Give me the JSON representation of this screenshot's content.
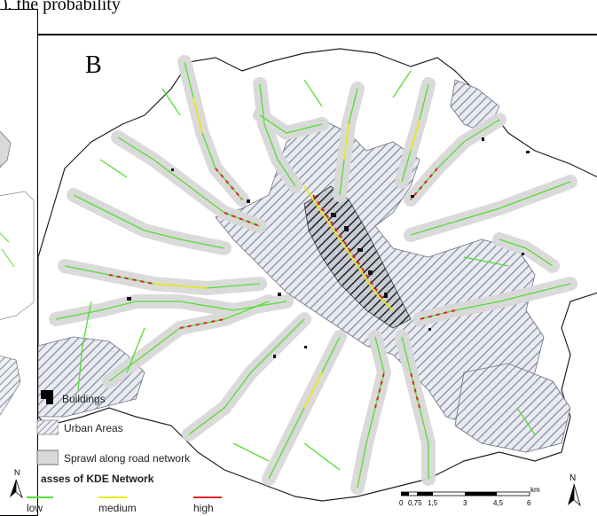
{
  "figure": {
    "top_caption_fragment": "), the probability",
    "panel_label": "B"
  },
  "legend": {
    "buildings": "Buildings",
    "urban_areas": "Urban Areas",
    "sprawl": "Sprawl along road network",
    "kde_title": "asses of KDE Network",
    "kde_classes": [
      {
        "label": "low",
        "color": "#55dd33"
      },
      {
        "label": "medium",
        "color": "#e8e820"
      },
      {
        "label": "high",
        "color": "#dd2222"
      }
    ]
  },
  "scale": {
    "unit": "km",
    "ticks": [
      "0",
      "0,75",
      "1,5",
      "3",
      "4,5",
      "6"
    ]
  },
  "north_arrow": {
    "label": "N"
  },
  "colors": {
    "road_low": "#55dd33",
    "road_medium": "#e8e820",
    "road_high": "#dd2222",
    "sprawl_fill": "#d9d9d9",
    "urban_hatch": "#8a8fa3"
  }
}
